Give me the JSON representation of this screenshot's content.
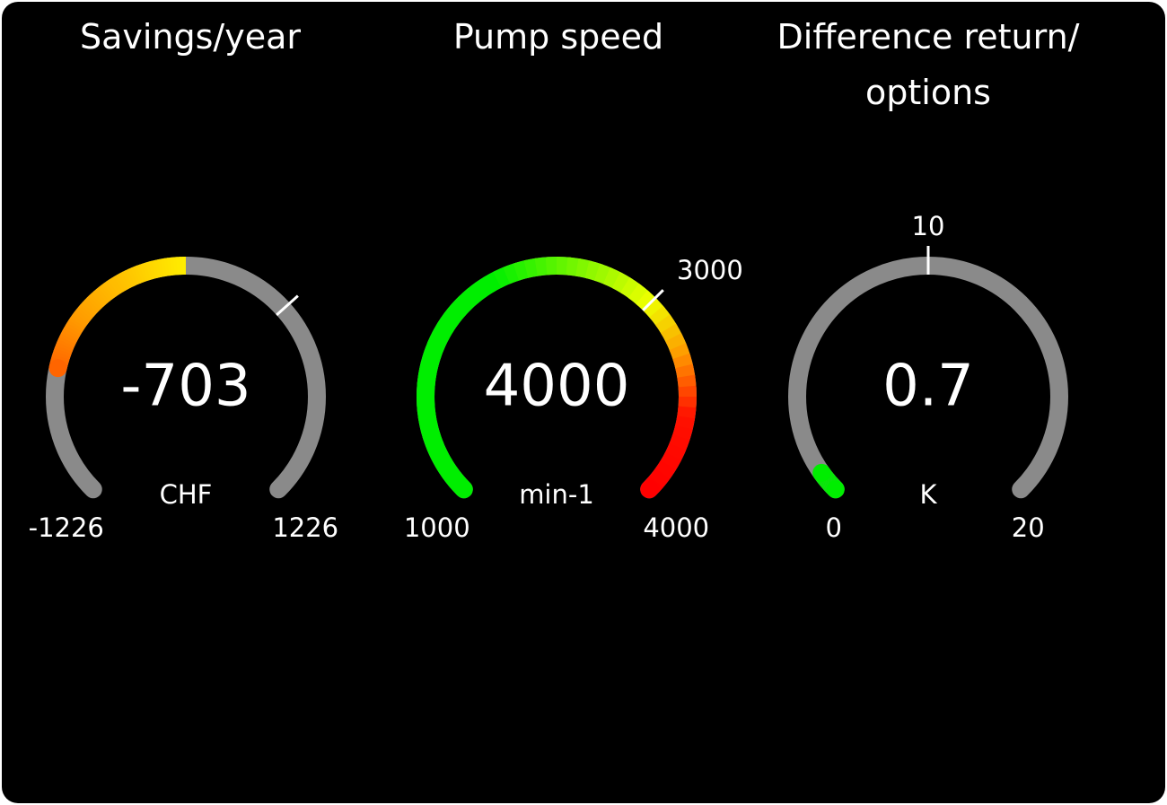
{
  "gauges": [
    {
      "title": "Savings/year",
      "value": -703,
      "value_text": "-703",
      "unit": "CHF",
      "min": -1226,
      "max": 1226,
      "min_label": "-1226",
      "max_label": "1226",
      "fill_from": 0,
      "marker": 436,
      "marker_label": "",
      "colors": {
        "track": "#8a8a8a",
        "stops": [
          [
            -1226,
            "#ff2200"
          ],
          [
            -900,
            "#ff3300"
          ],
          [
            -500,
            "#ff9900"
          ],
          [
            0,
            "#ffee00"
          ]
        ]
      }
    },
    {
      "title": "Pump speed",
      "value": 4000,
      "value_text": "4000",
      "unit": "min-1",
      "min": 1000,
      "max": 4000,
      "min_label": "1000",
      "max_label": "4000",
      "fill_from": 1000,
      "marker": 3000,
      "marker_label": "3000",
      "colors": {
        "track": "#8a8a8a",
        "stops": [
          [
            1000,
            "#00ee00"
          ],
          [
            2200,
            "#00ee00"
          ],
          [
            3000,
            "#eeff00"
          ],
          [
            3300,
            "#ff9900"
          ],
          [
            3600,
            "#ff1100"
          ],
          [
            4000,
            "#ff0000"
          ]
        ]
      }
    },
    {
      "title": "Difference return/ options",
      "value": 0.7,
      "value_text": "0.7",
      "unit": "K",
      "min": 0,
      "max": 20,
      "min_label": "0",
      "max_label": "20",
      "fill_from": 0,
      "marker": 10,
      "marker_label": "10",
      "colors": {
        "track": "#8a8a8a",
        "stops": [
          [
            0,
            "#00ee00"
          ],
          [
            20,
            "#00ee00"
          ]
        ]
      }
    }
  ]
}
